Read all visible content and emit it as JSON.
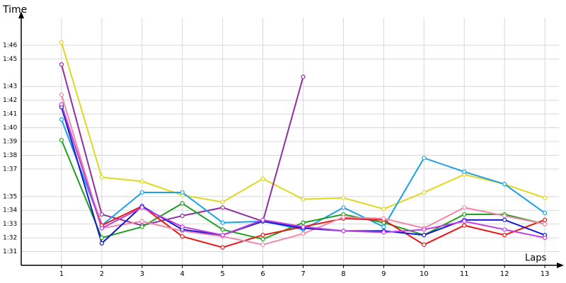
{
  "chart_data": {
    "type": "line",
    "y_label": "Time",
    "x_label": "Laps",
    "x": [
      1,
      2,
      3,
      4,
      5,
      6,
      7,
      8,
      9,
      10,
      11,
      12,
      13
    ],
    "xlim": [
      0,
      13.35
    ],
    "xticks": [
      1,
      2,
      3,
      4,
      5,
      6,
      7,
      8,
      9,
      10,
      11,
      12,
      13
    ],
    "ylim": [
      90,
      108
    ],
    "yticks": [
      {
        "value": 91,
        "label": "1:31"
      },
      {
        "value": 92,
        "label": "1:32"
      },
      {
        "value": 93,
        "label": "1:33"
      },
      {
        "value": 94,
        "label": "1:34"
      },
      {
        "value": 95,
        "label": "1:35"
      },
      {
        "value": 97,
        "label": "1:37"
      },
      {
        "value": 98,
        "label": "1:38"
      },
      {
        "value": 99,
        "label": "1:39"
      },
      {
        "value": 100,
        "label": "1:40"
      },
      {
        "value": 101,
        "label": "1:41"
      },
      {
        "value": 102,
        "label": "1:42"
      },
      {
        "value": 103,
        "label": "1:43"
      },
      {
        "value": 105,
        "label": "1:45"
      },
      {
        "value": 106,
        "label": "1:46"
      }
    ],
    "grid": true,
    "series": [
      {
        "color": "#e0d820",
        "values": [
          106.2,
          96.4,
          96.1,
          95.1,
          94.6,
          96.3,
          94.8,
          94.9,
          94.1,
          95.3,
          96.6,
          95.9,
          94.9
        ]
      },
      {
        "color": "#9030a0",
        "values": [
          104.6,
          93.7,
          92.9,
          93.6,
          94.2,
          93.2,
          103.7,
          null,
          null,
          null,
          null,
          null,
          null
        ]
      },
      {
        "color": "#1ea0e8",
        "values": [
          100.6,
          92.9,
          95.3,
          95.3,
          93.1,
          93.2,
          92.6,
          94.2,
          92.8,
          97.8,
          96.8,
          95.9,
          93.8
        ]
      },
      {
        "color": "#20a020",
        "values": [
          99.1,
          92.0,
          92.8,
          94.5,
          92.6,
          91.9,
          93.1,
          93.7,
          93.1,
          92.2,
          93.7,
          93.7,
          93.0
        ]
      },
      {
        "color": "#e81818",
        "values": [
          101.6,
          92.9,
          94.3,
          92.1,
          91.3,
          92.2,
          92.8,
          93.4,
          93.3,
          91.5,
          92.9,
          92.2,
          93.3
        ]
      },
      {
        "color": "#f088a8",
        "values": [
          102.4,
          92.7,
          93.2,
          92.5,
          92.1,
          91.5,
          92.3,
          93.5,
          93.4,
          92.7,
          94.2,
          93.6,
          93.0
        ]
      },
      {
        "color": "#1818d0",
        "values": [
          101.5,
          91.6,
          94.3,
          92.6,
          92.2,
          93.2,
          92.7,
          92.5,
          92.5,
          92.2,
          93.3,
          93.3,
          92.2
        ]
      },
      {
        "color": "#c040e0",
        "values": [
          101.7,
          92.7,
          94.2,
          92.8,
          92.2,
          93.3,
          92.8,
          92.5,
          92.4,
          92.6,
          93.2,
          92.6,
          92.0
        ]
      }
    ]
  }
}
